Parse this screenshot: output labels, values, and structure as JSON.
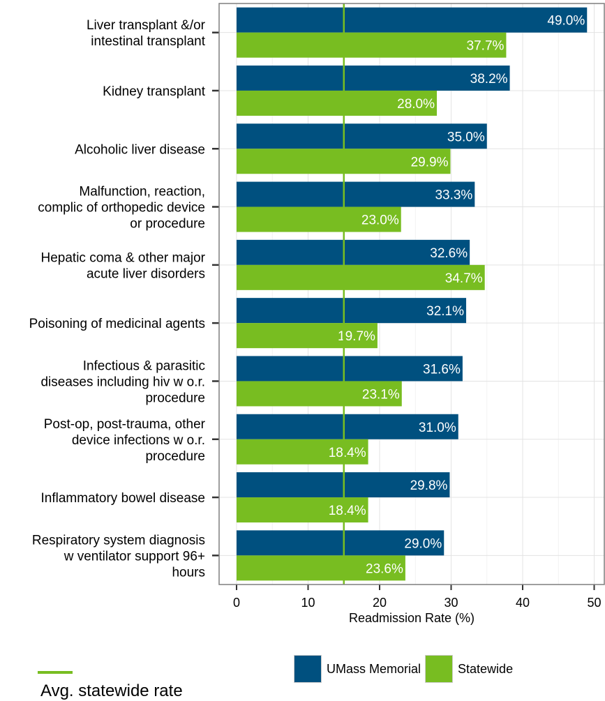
{
  "chart_data": {
    "type": "bar",
    "orientation": "horizontal",
    "categories": [
      [
        "Liver transplant &/or",
        "intestinal transplant"
      ],
      [
        "Kidney transplant"
      ],
      [
        "Alcoholic liver disease"
      ],
      [
        "Malfunction, reaction,",
        "complic of orthopedic device",
        "or procedure"
      ],
      [
        "Hepatic coma & other major",
        "acute liver disorders"
      ],
      [
        "Poisoning of medicinal agents"
      ],
      [
        "Infectious & parasitic",
        "diseases including hiv w o.r.",
        "procedure"
      ],
      [
        "Post-op, post-trauma, other",
        "device infections w o.r.",
        "procedure"
      ],
      [
        "Inflammatory bowel disease"
      ],
      [
        "Respiratory system diagnosis",
        "w ventilator support 96+",
        "hours"
      ]
    ],
    "series": [
      {
        "name": "UMass Memorial",
        "color": "#00507f",
        "values": [
          49.0,
          38.2,
          35.0,
          33.3,
          32.6,
          32.1,
          31.6,
          31.0,
          29.8,
          29.0
        ],
        "labels": [
          "49.0%",
          "38.2%",
          "35.0%",
          "33.3%",
          "32.6%",
          "32.1%",
          "31.6%",
          "31.0%",
          "29.8%",
          "29.0%"
        ]
      },
      {
        "name": "Statewide",
        "color": "#78bd21",
        "values": [
          37.7,
          28.0,
          29.9,
          23.0,
          34.7,
          19.7,
          23.1,
          18.4,
          18.4,
          23.6
        ],
        "labels": [
          "37.7%",
          "28.0%",
          "29.9%",
          "23.0%",
          "34.7%",
          "19.7%",
          "23.1%",
          "18.4%",
          "18.4%",
          "23.6%"
        ]
      }
    ],
    "xlabel": "Readmission Rate (%)",
    "xlim": [
      0,
      50
    ],
    "xticks": [
      "0",
      "10",
      "20",
      "30",
      "40",
      "50"
    ],
    "reference_line": {
      "value": 15,
      "color": "#78bd21"
    },
    "grid": true,
    "legend_position": "bottom"
  },
  "legend": {
    "umass_label": "UMass Memorial",
    "statewide_label": "Statewide",
    "avg_label": "Avg. statewide rate"
  },
  "colors": {
    "umass": "#00507f",
    "statewide": "#78bd21",
    "avg_line": "#78bd21"
  }
}
